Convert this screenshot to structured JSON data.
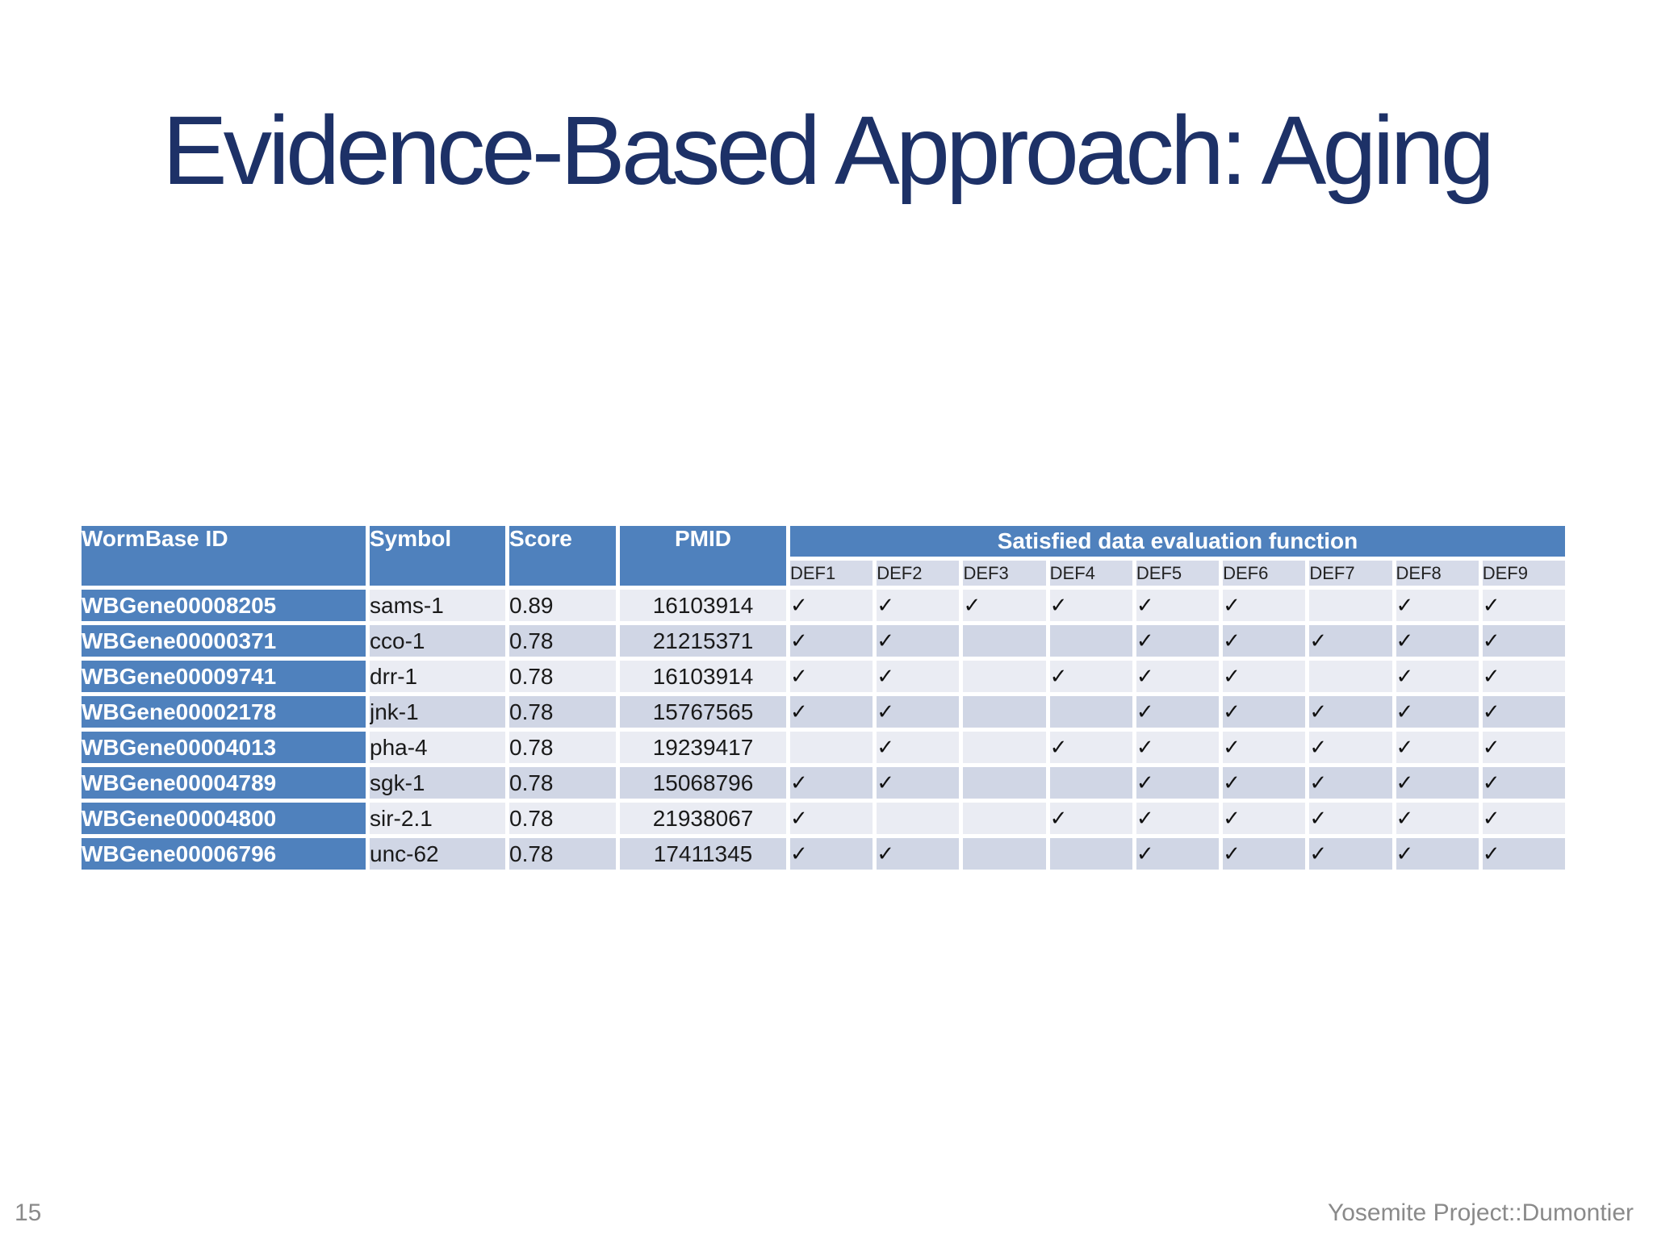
{
  "slide": {
    "title": "Evidence-Based Approach: Aging",
    "page_number": "15",
    "footer": "Yosemite Project::Dumontier"
  },
  "table": {
    "columns": [
      "WormBase ID",
      "Symbol",
      "Score",
      "PMID"
    ],
    "group_header": "Satisfied data evaluation function",
    "def_columns": [
      "DEF1",
      "DEF2",
      "DEF3",
      "DEF4",
      "DEF5",
      "DEF6",
      "DEF7",
      "DEF8",
      "DEF9"
    ],
    "check_glyph": "✓",
    "rows": [
      {
        "wormbase_id": "WBGene00008205",
        "symbol": "sams-1",
        "score": "0.89",
        "pmid": "16103914",
        "defs": [
          1,
          1,
          1,
          1,
          1,
          1,
          0,
          1,
          1
        ]
      },
      {
        "wormbase_id": "WBGene00000371",
        "symbol": "cco-1",
        "score": "0.78",
        "pmid": "21215371",
        "defs": [
          1,
          1,
          0,
          0,
          1,
          1,
          1,
          1,
          1
        ]
      },
      {
        "wormbase_id": "WBGene00009741",
        "symbol": "drr-1",
        "score": "0.78",
        "pmid": "16103914",
        "defs": [
          1,
          1,
          0,
          1,
          1,
          1,
          0,
          1,
          1
        ]
      },
      {
        "wormbase_id": "WBGene00002178",
        "symbol": "jnk-1",
        "score": "0.78",
        "pmid": "15767565",
        "defs": [
          1,
          1,
          0,
          0,
          1,
          1,
          1,
          1,
          1
        ]
      },
      {
        "wormbase_id": "WBGene00004013",
        "symbol": "pha-4",
        "score": "0.78",
        "pmid": "19239417",
        "defs": [
          0,
          1,
          0,
          1,
          1,
          1,
          1,
          1,
          1
        ]
      },
      {
        "wormbase_id": "WBGene00004789",
        "symbol": "sgk-1",
        "score": "0.78",
        "pmid": "15068796",
        "defs": [
          1,
          1,
          0,
          0,
          1,
          1,
          1,
          1,
          1
        ]
      },
      {
        "wormbase_id": "WBGene00004800",
        "symbol": "sir-2.1",
        "score": "0.78",
        "pmid": "21938067",
        "defs": [
          1,
          0,
          0,
          1,
          1,
          1,
          1,
          1,
          1
        ]
      },
      {
        "wormbase_id": "WBGene00006796",
        "symbol": "unc-62",
        "score": "0.78",
        "pmid": "17411345",
        "defs": [
          1,
          1,
          0,
          0,
          1,
          1,
          1,
          1,
          1
        ]
      }
    ]
  },
  "colors": {
    "header_blue": "#4f81bd",
    "band_dark": "#d0d6e5",
    "band_light": "#eaecf3",
    "def_header_bg": "#d6dbe9",
    "title_navy": "#1d3167",
    "footer_gray": "#8a8a8a"
  }
}
